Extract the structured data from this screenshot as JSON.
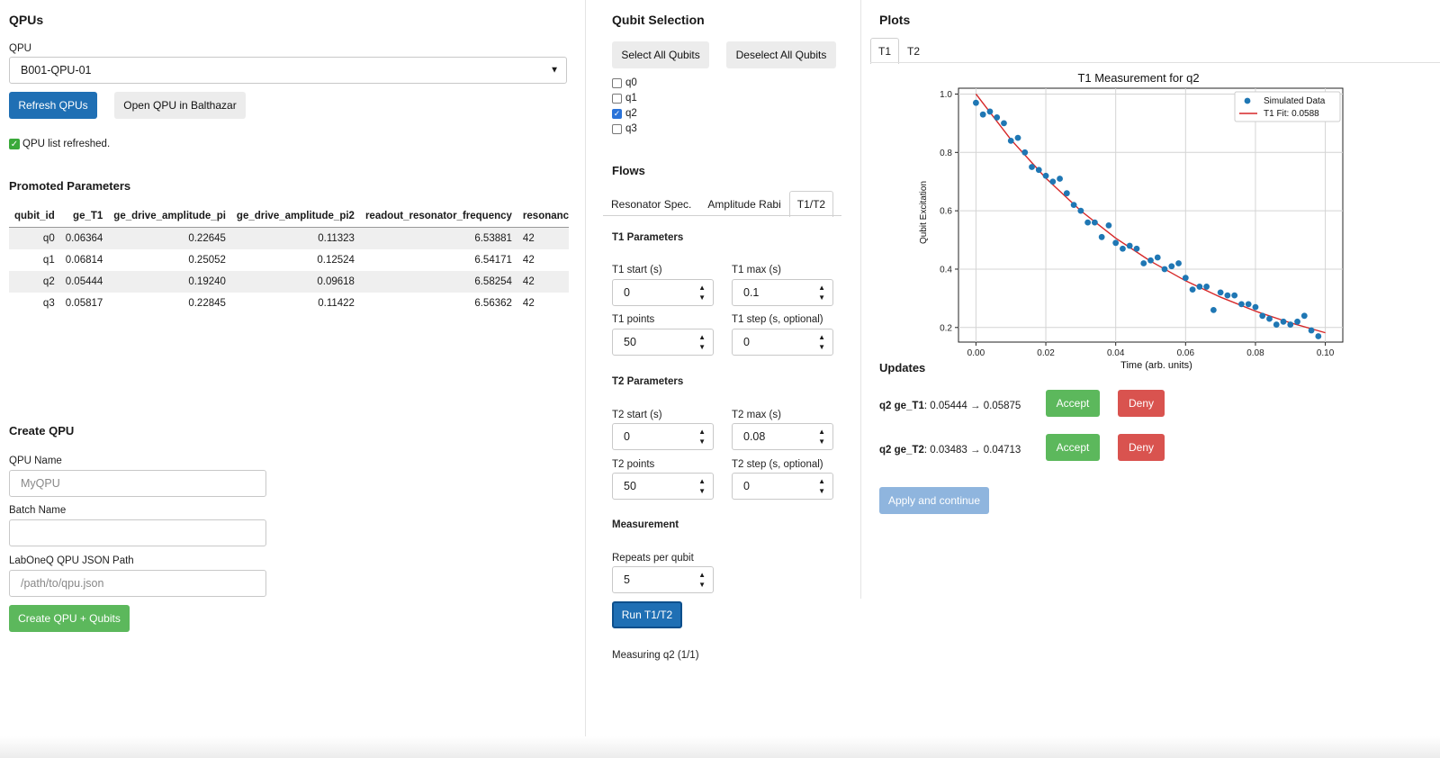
{
  "qpus": {
    "heading": "QPUs",
    "select_label": "QPU",
    "selected": "B001-QPU-01",
    "refresh_button": "Refresh QPUs",
    "open_button": "Open QPU in Balthazar",
    "status": "QPU list refreshed."
  },
  "promoted": {
    "heading": "Promoted Parameters",
    "columns": [
      "qubit_id",
      "ge_T1",
      "ge_drive_amplitude_pi",
      "ge_drive_amplitude_pi2",
      "readout_resonator_frequency",
      "resonance"
    ],
    "rows": [
      [
        "q0",
        "0.06364",
        "0.22645",
        "0.11323",
        "6.53881",
        "42"
      ],
      [
        "q1",
        "0.06814",
        "0.25052",
        "0.12524",
        "6.54171",
        "42"
      ],
      [
        "q2",
        "0.05444",
        "0.19240",
        "0.09618",
        "6.58254",
        "42"
      ],
      [
        "q3",
        "0.05817",
        "0.22845",
        "0.11422",
        "6.56362",
        "42"
      ]
    ]
  },
  "create": {
    "heading": "Create QPU",
    "name_label": "QPU Name",
    "name_placeholder": "MyQPU",
    "batch_label": "Batch Name",
    "batch_value": "",
    "path_label": "LabOneQ QPU JSON Path",
    "path_placeholder": "/path/to/qpu.json",
    "create_button": "Create QPU + Qubits"
  },
  "qubit_selection": {
    "heading": "Qubit Selection",
    "select_all": "Select All Qubits",
    "deselect_all": "Deselect All Qubits",
    "qubits": [
      {
        "label": "q0",
        "checked": false
      },
      {
        "label": "q1",
        "checked": false
      },
      {
        "label": "q2",
        "checked": true
      },
      {
        "label": "q3",
        "checked": false
      }
    ]
  },
  "flows": {
    "heading": "Flows",
    "tabs": [
      "Resonator Spec.",
      "Amplitude Rabi",
      "T1/T2"
    ],
    "active_tab": "T1/T2",
    "t1": {
      "heading": "T1 Parameters",
      "start_label": "T1 start (s)",
      "start_value": "0",
      "max_label": "T1 max (s)",
      "max_value": "0.1",
      "points_label": "T1 points",
      "points_value": "50",
      "step_label": "T1 step (s, optional)",
      "step_value": "0"
    },
    "t2": {
      "heading": "T2 Parameters",
      "start_label": "T2 start (s)",
      "start_value": "0",
      "max_label": "T2 max (s)",
      "max_value": "0.08",
      "points_label": "T2 points",
      "points_value": "50",
      "step_label": "T2 step (s, optional)",
      "step_value": "0"
    },
    "measurement": {
      "heading": "Measurement",
      "repeats_label": "Repeats per qubit",
      "repeats_value": "5"
    },
    "run_button": "Run T1/T2",
    "status": "Measuring q2 (1/1)"
  },
  "plots": {
    "heading": "Plots",
    "tabs": [
      "T1",
      "T2"
    ],
    "active_tab": "T1"
  },
  "updates": {
    "heading": "Updates",
    "items": [
      {
        "param": "q2 ge_T1",
        "change": ": 0.05444 → 0.05875",
        "accept": "Accept",
        "deny": "Deny"
      },
      {
        "param": "q2 ge_T2",
        "change": ": 0.03483 → 0.04713",
        "accept": "Accept",
        "deny": "Deny"
      }
    ],
    "apply_button": "Apply and continue"
  },
  "colors": {
    "primary": "#1f6fb4",
    "success": "#5cb85c",
    "danger": "#d9534f",
    "scatter": "#1f77b4",
    "fit": "#d62728"
  },
  "chart_data": {
    "type": "scatter",
    "title": "T1 Measurement for q2",
    "xlabel": "Time (arb. units)",
    "ylabel": "Qubit Excitation",
    "xlim": [
      -0.005,
      0.105
    ],
    "ylim": [
      0.15,
      1.02
    ],
    "xticks": [
      "0.00",
      "0.02",
      "0.04",
      "0.06",
      "0.08",
      "0.10"
    ],
    "yticks": [
      "0.2",
      "0.4",
      "0.6",
      "0.8",
      "1.0"
    ],
    "grid": true,
    "legend_position": "top-right",
    "series": [
      {
        "name": "Simulated Data",
        "kind": "scatter",
        "x": [
          0.0,
          0.002,
          0.004,
          0.006,
          0.008,
          0.01,
          0.012,
          0.014,
          0.016,
          0.018,
          0.02,
          0.022,
          0.024,
          0.026,
          0.028,
          0.03,
          0.032,
          0.034,
          0.036,
          0.038,
          0.04,
          0.042,
          0.044,
          0.046,
          0.048,
          0.05,
          0.052,
          0.054,
          0.056,
          0.058,
          0.06,
          0.062,
          0.064,
          0.066,
          0.068,
          0.07,
          0.072,
          0.074,
          0.076,
          0.078,
          0.08,
          0.082,
          0.084,
          0.086,
          0.088,
          0.09,
          0.092,
          0.094,
          0.096,
          0.098
        ],
        "y": [
          0.97,
          0.93,
          0.94,
          0.92,
          0.9,
          0.84,
          0.85,
          0.8,
          0.75,
          0.74,
          0.72,
          0.7,
          0.71,
          0.66,
          0.62,
          0.6,
          0.56,
          0.56,
          0.51,
          0.55,
          0.49,
          0.47,
          0.48,
          0.47,
          0.42,
          0.43,
          0.44,
          0.4,
          0.41,
          0.42,
          0.37,
          0.33,
          0.34,
          0.34,
          0.26,
          0.32,
          0.31,
          0.31,
          0.28,
          0.28,
          0.27,
          0.24,
          0.23,
          0.21,
          0.22,
          0.21,
          0.22,
          0.24,
          0.19,
          0.17
        ]
      },
      {
        "name": "T1 Fit: 0.0588",
        "kind": "line",
        "x": [
          0.0,
          0.01,
          0.02,
          0.03,
          0.04,
          0.05,
          0.06,
          0.07,
          0.08,
          0.09,
          0.1
        ],
        "y": [
          1.0,
          0.844,
          0.712,
          0.6,
          0.506,
          0.427,
          0.36,
          0.304,
          0.256,
          0.216,
          0.182
        ]
      }
    ]
  }
}
